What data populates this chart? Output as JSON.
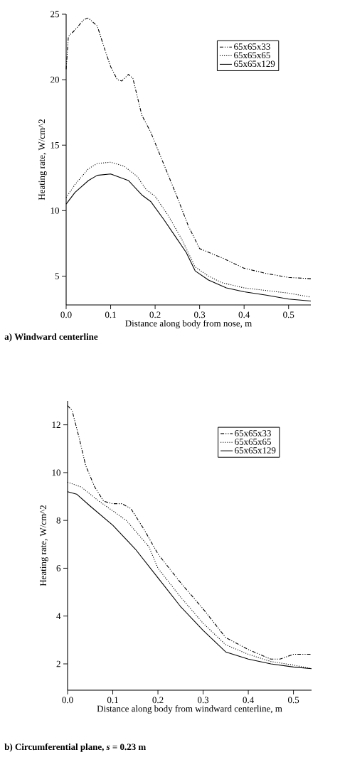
{
  "chart_data": [
    {
      "type": "line",
      "xlabel": "Distance along body from nose, m",
      "ylabel": "Heating rate,  W/cm^2",
      "annotations": [
        "**a) Windward centerline**"
      ],
      "xlim": [
        0,
        0.55
      ],
      "ylim": [
        2.8,
        25
      ],
      "xticks": [
        {
          "value": 0,
          "label": "0.0"
        },
        {
          "value": 0.1,
          "label": "0.1"
        },
        {
          "value": 0.2,
          "label": "0.2"
        },
        {
          "value": 0.3,
          "label": "0.3"
        },
        {
          "value": 0.4,
          "label": "0.4"
        },
        {
          "value": 0.5,
          "label": "0.5"
        }
      ],
      "yticks": [
        5,
        10,
        15,
        20,
        25
      ],
      "legend": "top right",
      "grid": false,
      "series": [
        {
          "name": "65x65x33",
          "color": "#000000",
          "line_style": "dashdot",
          "x": [
            0,
            0.005,
            0.02,
            0.04,
            0.05,
            0.07,
            0.085,
            0.1,
            0.115,
            0.125,
            0.14,
            0.15,
            0.17,
            0.19,
            0.22,
            0.25,
            0.275,
            0.3,
            0.35,
            0.4,
            0.45,
            0.5,
            0.55
          ],
          "values": [
            20.8,
            23.3,
            23.8,
            24.6,
            24.7,
            24.1,
            22.5,
            21,
            20,
            19.9,
            20.4,
            20.1,
            17.3,
            16,
            13.5,
            11,
            8.8,
            7.1,
            6.4,
            5.6,
            5.2,
            4.9,
            4.8
          ]
        },
        {
          "name": "65x65x65",
          "color": "#000000",
          "line_style": "dotted",
          "x": [
            0,
            0.02,
            0.05,
            0.07,
            0.1,
            0.13,
            0.16,
            0.18,
            0.2,
            0.23,
            0.26,
            0.29,
            0.32,
            0.35,
            0.4,
            0.45,
            0.5,
            0.55
          ],
          "values": [
            11,
            12,
            13.2,
            13.6,
            13.7,
            13.4,
            12.6,
            11.6,
            11.1,
            9.6,
            7.8,
            5.7,
            5,
            4.5,
            4.1,
            3.9,
            3.7,
            3.4
          ]
        },
        {
          "name": "65x65x129",
          "color": "#000000",
          "line_style": "solid",
          "x": [
            0,
            0.02,
            0.05,
            0.07,
            0.1,
            0.14,
            0.17,
            0.19,
            0.22,
            0.25,
            0.27,
            0.29,
            0.32,
            0.36,
            0.4,
            0.45,
            0.5,
            0.55
          ],
          "values": [
            10.5,
            11.4,
            12.3,
            12.7,
            12.8,
            12.3,
            11.2,
            10.7,
            9.3,
            7.8,
            6.8,
            5.4,
            4.7,
            4.1,
            3.8,
            3.55,
            3.25,
            3.1
          ]
        }
      ]
    },
    {
      "type": "line",
      "xlabel": "Distance along body from windward centerline, m",
      "ylabel": "Heating rate,  W/cm^2",
      "annotations": [
        "**b) Circumferential plane, *s* = 0.23 m**"
      ],
      "xlim": [
        0,
        0.54
      ],
      "ylim": [
        0.9,
        13
      ],
      "xticks": [
        {
          "value": 0,
          "label": "0.0"
        },
        {
          "value": 0.1,
          "label": "0.1"
        },
        {
          "value": 0.2,
          "label": "0.2"
        },
        {
          "value": 0.3,
          "label": "0.3"
        },
        {
          "value": 0.4,
          "label": "0.4"
        },
        {
          "value": 0.5,
          "label": "0.5"
        }
      ],
      "yticks": [
        2,
        4,
        6,
        8,
        10,
        12
      ],
      "legend": "top right",
      "grid": false,
      "series": [
        {
          "name": "65x65x33",
          "color": "#000000",
          "line_style": "dashdot",
          "x": [
            0,
            0.01,
            0.025,
            0.04,
            0.06,
            0.08,
            0.1,
            0.12,
            0.14,
            0.17,
            0.2,
            0.25,
            0.3,
            0.35,
            0.4,
            0.45,
            0.47,
            0.5,
            0.54
          ],
          "values": [
            12.8,
            12.6,
            11.5,
            10.3,
            9.4,
            8.8,
            8.7,
            8.7,
            8.5,
            7.6,
            6.6,
            5.4,
            4.3,
            3.1,
            2.6,
            2.2,
            2.2,
            2.4,
            2.4
          ]
        },
        {
          "name": "65x65x65",
          "color": "#000000",
          "line_style": "dotted",
          "x": [
            0,
            0.03,
            0.07,
            0.1,
            0.13,
            0.18,
            0.2,
            0.25,
            0.3,
            0.35,
            0.4,
            0.45,
            0.5,
            0.54
          ],
          "values": [
            9.6,
            9.4,
            8.8,
            8.4,
            8.0,
            6.9,
            6.0,
            4.8,
            3.7,
            2.8,
            2.4,
            2.1,
            1.95,
            1.8
          ]
        },
        {
          "name": "65x65x129",
          "color": "#000000",
          "line_style": "solid",
          "x": [
            0,
            0.02,
            0.05,
            0.1,
            0.15,
            0.2,
            0.25,
            0.3,
            0.35,
            0.4,
            0.45,
            0.5,
            0.54
          ],
          "values": [
            9.2,
            9.1,
            8.6,
            7.8,
            6.8,
            5.6,
            4.4,
            3.4,
            2.5,
            2.2,
            2.0,
            1.87,
            1.8
          ]
        }
      ]
    }
  ]
}
